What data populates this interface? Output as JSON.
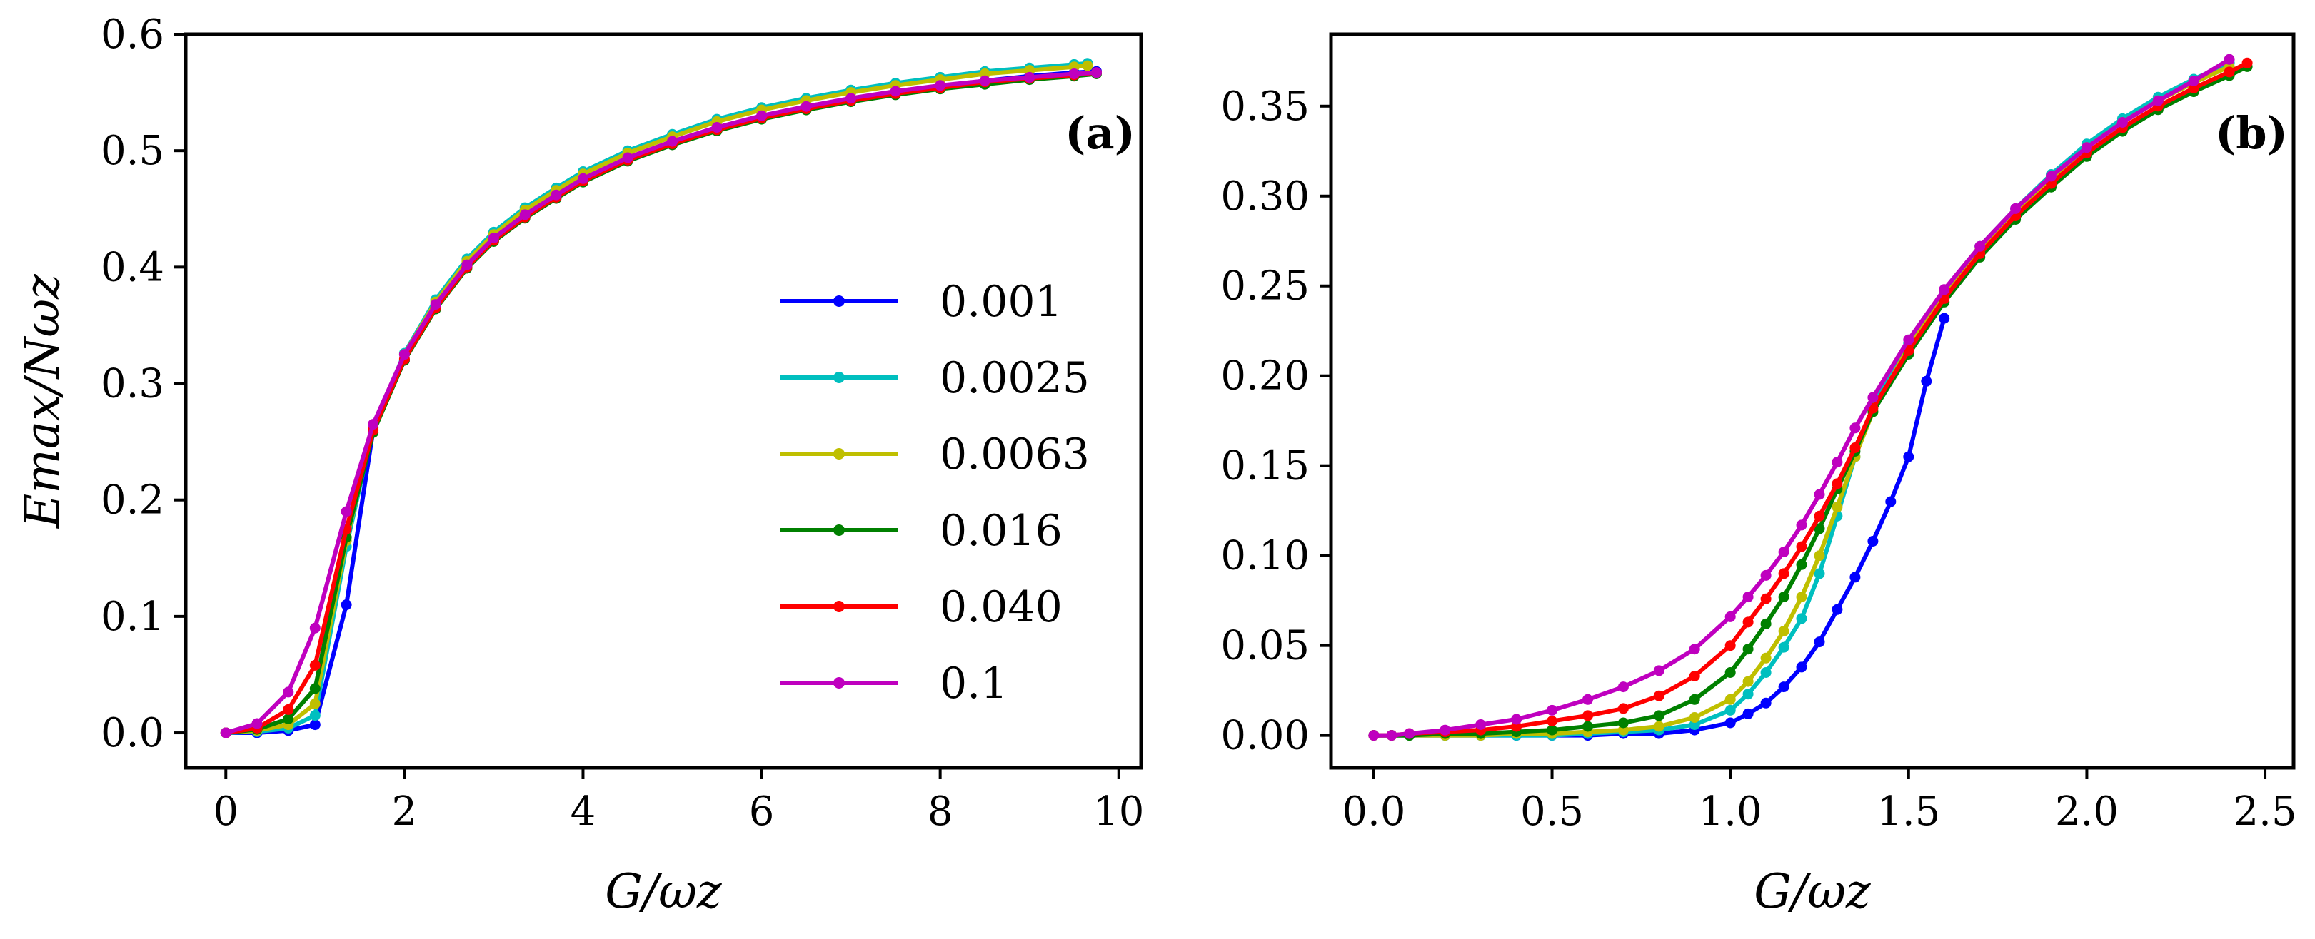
{
  "chart_data": [
    {
      "panel": "(a)",
      "type": "line",
      "xlabel": "G/ωz",
      "ylabel": "Emax/Nωz",
      "xlim": [
        -0.45,
        10.25
      ],
      "ylim": [
        -0.03,
        0.6
      ],
      "xticks": [
        0,
        2,
        4,
        6,
        8,
        10
      ],
      "xtick_labels": [
        "0",
        "2",
        "4",
        "6",
        "8",
        "10"
      ],
      "yticks": [
        0.0,
        0.1,
        0.2,
        0.3,
        0.4,
        0.5,
        0.6
      ],
      "ytick_labels": [
        "0.0",
        "0.1",
        "0.2",
        "0.3",
        "0.4",
        "0.5",
        "0.6"
      ],
      "legend": {
        "placement": "center-right",
        "entries": [
          "0.001",
          "0.0025",
          "0.0063",
          "0.016",
          "0.040",
          "0.1"
        ]
      },
      "series": [
        {
          "name": "0.001",
          "color": "#0000ff",
          "x": [
            0,
            0.35,
            0.7,
            1.0,
            1.35,
            1.65,
            2.0,
            2.35,
            2.7,
            3.0,
            3.35,
            3.7,
            4.0,
            4.5,
            5.0,
            5.5,
            6.0,
            6.5,
            7.0,
            7.5,
            8.0,
            8.5,
            9.0,
            9.5,
            9.75
          ],
          "y": [
            0.0,
            0.0,
            0.002,
            0.007,
            0.11,
            0.26,
            0.32,
            0.365,
            0.4,
            0.423,
            0.443,
            0.46,
            0.474,
            0.492,
            0.507,
            0.519,
            0.529,
            0.537,
            0.544,
            0.55,
            0.555,
            0.56,
            0.564,
            0.567,
            0.568
          ]
        },
        {
          "name": "0.0025",
          "color": "#00bfbf",
          "x": [
            0,
            0.35,
            0.7,
            1.0,
            1.35,
            1.65,
            2.0,
            2.35,
            2.7,
            3.0,
            3.35,
            3.7,
            4.0,
            4.5,
            5.0,
            5.5,
            6.0,
            6.5,
            7.0,
            7.5,
            8.0,
            8.5,
            9.0,
            9.5,
            9.65
          ],
          "y": [
            0.0,
            0.001,
            0.004,
            0.015,
            0.16,
            0.262,
            0.326,
            0.372,
            0.407,
            0.43,
            0.451,
            0.468,
            0.482,
            0.5,
            0.514,
            0.527,
            0.537,
            0.545,
            0.552,
            0.558,
            0.563,
            0.568,
            0.571,
            0.574,
            0.575
          ]
        },
        {
          "name": "0.0063",
          "color": "#bfbf00",
          "x": [
            0,
            0.35,
            0.7,
            1.0,
            1.35,
            1.65,
            2.0,
            2.35,
            2.7,
            3.0,
            3.35,
            3.7,
            4.0,
            4.5,
            5.0,
            5.5,
            6.0,
            6.5,
            7.0,
            7.5,
            8.0,
            8.5,
            9.0,
            9.5,
            9.65
          ],
          "y": [
            0.0,
            0.002,
            0.007,
            0.025,
            0.165,
            0.262,
            0.325,
            0.37,
            0.405,
            0.428,
            0.449,
            0.466,
            0.48,
            0.498,
            0.512,
            0.525,
            0.535,
            0.543,
            0.55,
            0.556,
            0.561,
            0.566,
            0.569,
            0.572,
            0.573
          ]
        },
        {
          "name": "0.016",
          "color": "#008000",
          "x": [
            0,
            0.35,
            0.7,
            1.0,
            1.35,
            1.65,
            2.0,
            2.35,
            2.7,
            3.0,
            3.35,
            3.7,
            4.0,
            4.5,
            5.0,
            5.5,
            6.0,
            6.5,
            7.0,
            7.5,
            8.0,
            8.5,
            9.0,
            9.5,
            9.75
          ],
          "y": [
            0.0,
            0.003,
            0.012,
            0.038,
            0.168,
            0.258,
            0.32,
            0.364,
            0.399,
            0.422,
            0.442,
            0.459,
            0.473,
            0.491,
            0.505,
            0.517,
            0.527,
            0.535,
            0.542,
            0.548,
            0.553,
            0.557,
            0.561,
            0.564,
            0.566
          ]
        },
        {
          "name": "0.040",
          "color": "#ff0000",
          "x": [
            0,
            0.35,
            0.7,
            1.0,
            1.35,
            1.65,
            2.0,
            2.35,
            2.7,
            3.0,
            3.35,
            3.7,
            4.0,
            4.5,
            5.0,
            5.5,
            6.0,
            6.5,
            7.0,
            7.5,
            8.0,
            8.5,
            9.0,
            9.5,
            9.75
          ],
          "y": [
            0.0,
            0.004,
            0.02,
            0.058,
            0.175,
            0.26,
            0.321,
            0.365,
            0.4,
            0.423,
            0.443,
            0.46,
            0.474,
            0.492,
            0.506,
            0.518,
            0.528,
            0.536,
            0.543,
            0.549,
            0.554,
            0.559,
            0.562,
            0.565,
            0.567
          ]
        },
        {
          "name": "0.1",
          "color": "#bf00bf",
          "x": [
            0,
            0.35,
            0.7,
            1.0,
            1.35,
            1.65,
            2.0,
            2.35,
            2.7,
            3.0,
            3.35,
            3.7,
            4.0,
            4.5,
            5.0,
            5.5,
            6.0,
            6.5,
            7.0,
            7.5,
            8.0,
            8.5,
            9.0,
            9.5,
            9.75
          ],
          "y": [
            0.0,
            0.008,
            0.035,
            0.09,
            0.19,
            0.265,
            0.325,
            0.368,
            0.402,
            0.425,
            0.445,
            0.462,
            0.476,
            0.494,
            0.508,
            0.52,
            0.53,
            0.538,
            0.545,
            0.551,
            0.556,
            0.56,
            0.563,
            0.566,
            0.567
          ]
        }
      ]
    },
    {
      "panel": "(b)",
      "type": "line",
      "xlabel": "G/ωz",
      "ylabel": "",
      "xlim": [
        -0.12,
        2.58
      ],
      "ylim": [
        -0.018,
        0.39
      ],
      "xticks": [
        0.0,
        0.5,
        1.0,
        1.5,
        2.0,
        2.5
      ],
      "xtick_labels": [
        "0.0",
        "0.5",
        "1.0",
        "1.5",
        "2.0",
        "2.5"
      ],
      "yticks": [
        0.0,
        0.05,
        0.1,
        0.15,
        0.2,
        0.25,
        0.3,
        0.35
      ],
      "ytick_labels": [
        "0.00",
        "0.05",
        "0.10",
        "0.15",
        "0.20",
        "0.25",
        "0.30",
        "0.35"
      ],
      "series": [
        {
          "name": "0.001",
          "color": "#0000ff",
          "x": [
            0.0,
            0.05,
            0.1,
            0.2,
            0.3,
            0.4,
            0.5,
            0.6,
            0.7,
            0.8,
            0.9,
            1.0,
            1.05,
            1.1,
            1.15,
            1.2,
            1.25,
            1.3,
            1.35,
            1.4,
            1.45,
            1.5,
            1.55,
            1.6
          ],
          "y": [
            0.0,
            0.0,
            0.0,
            0.0,
            0.0,
            0.0,
            0.0,
            0.0,
            0.001,
            0.001,
            0.003,
            0.007,
            0.012,
            0.018,
            0.027,
            0.038,
            0.052,
            0.07,
            0.088,
            0.108,
            0.13,
            0.155,
            0.197,
            0.232
          ]
        },
        {
          "name": "0.0025",
          "color": "#00bfbf",
          "x": [
            0.0,
            0.05,
            0.1,
            0.2,
            0.3,
            0.4,
            0.5,
            0.6,
            0.7,
            0.8,
            0.9,
            1.0,
            1.05,
            1.1,
            1.15,
            1.2,
            1.25,
            1.3,
            1.35,
            1.4,
            1.5,
            1.6,
            1.7,
            1.8,
            1.9,
            2.0,
            2.1,
            2.2,
            2.3,
            2.4
          ],
          "y": [
            0.0,
            0.0,
            0.0,
            0.0,
            0.0,
            0.0,
            0.0,
            0.001,
            0.002,
            0.003,
            0.006,
            0.014,
            0.023,
            0.035,
            0.049,
            0.065,
            0.09,
            0.122,
            0.155,
            0.183,
            0.218,
            0.247,
            0.272,
            0.293,
            0.312,
            0.329,
            0.343,
            0.355,
            0.365,
            0.374
          ]
        },
        {
          "name": "0.0063",
          "color": "#bfbf00",
          "x": [
            0.0,
            0.05,
            0.1,
            0.2,
            0.3,
            0.4,
            0.5,
            0.6,
            0.7,
            0.8,
            0.9,
            1.0,
            1.05,
            1.1,
            1.15,
            1.2,
            1.25,
            1.3,
            1.35,
            1.4,
            1.5,
            1.6,
            1.7,
            1.8,
            1.9,
            2.0,
            2.1,
            2.2,
            2.3,
            2.4
          ],
          "y": [
            0.0,
            0.0,
            0.0,
            0.0,
            0.0,
            0.001,
            0.001,
            0.002,
            0.003,
            0.005,
            0.01,
            0.02,
            0.03,
            0.043,
            0.058,
            0.077,
            0.1,
            0.127,
            0.155,
            0.18,
            0.216,
            0.245,
            0.27,
            0.291,
            0.31,
            0.327,
            0.341,
            0.353,
            0.363,
            0.372
          ]
        },
        {
          "name": "0.016",
          "color": "#008000",
          "x": [
            0.0,
            0.05,
            0.1,
            0.2,
            0.3,
            0.4,
            0.5,
            0.6,
            0.7,
            0.8,
            0.9,
            1.0,
            1.05,
            1.1,
            1.15,
            1.2,
            1.25,
            1.3,
            1.35,
            1.4,
            1.5,
            1.6,
            1.7,
            1.8,
            1.9,
            2.0,
            2.1,
            2.2,
            2.3,
            2.4,
            2.45
          ],
          "y": [
            0.0,
            0.0,
            0.0,
            0.001,
            0.001,
            0.002,
            0.003,
            0.005,
            0.007,
            0.011,
            0.02,
            0.035,
            0.048,
            0.062,
            0.077,
            0.095,
            0.115,
            0.137,
            0.158,
            0.18,
            0.212,
            0.241,
            0.266,
            0.287,
            0.305,
            0.322,
            0.336,
            0.348,
            0.358,
            0.367,
            0.372
          ]
        },
        {
          "name": "0.040",
          "color": "#ff0000",
          "x": [
            0.0,
            0.05,
            0.1,
            0.2,
            0.3,
            0.4,
            0.5,
            0.6,
            0.7,
            0.8,
            0.9,
            1.0,
            1.05,
            1.1,
            1.15,
            1.2,
            1.25,
            1.3,
            1.35,
            1.4,
            1.5,
            1.6,
            1.7,
            1.8,
            1.9,
            2.0,
            2.1,
            2.2,
            2.3,
            2.4,
            2.45
          ],
          "y": [
            0.0,
            0.0,
            0.001,
            0.002,
            0.003,
            0.005,
            0.008,
            0.011,
            0.015,
            0.022,
            0.033,
            0.05,
            0.063,
            0.076,
            0.09,
            0.105,
            0.122,
            0.14,
            0.16,
            0.182,
            0.214,
            0.243,
            0.268,
            0.289,
            0.307,
            0.324,
            0.338,
            0.35,
            0.36,
            0.369,
            0.374
          ]
        },
        {
          "name": "0.1",
          "color": "#bf00bf",
          "x": [
            0.0,
            0.05,
            0.1,
            0.2,
            0.3,
            0.4,
            0.5,
            0.6,
            0.7,
            0.8,
            0.9,
            1.0,
            1.05,
            1.1,
            1.15,
            1.2,
            1.25,
            1.3,
            1.35,
            1.4,
            1.5,
            1.6,
            1.7,
            1.8,
            1.9,
            2.0,
            2.1,
            2.2,
            2.3,
            2.4
          ],
          "y": [
            0.0,
            0.0,
            0.001,
            0.003,
            0.006,
            0.009,
            0.014,
            0.02,
            0.027,
            0.036,
            0.048,
            0.066,
            0.077,
            0.089,
            0.102,
            0.117,
            0.134,
            0.152,
            0.171,
            0.188,
            0.22,
            0.248,
            0.272,
            0.293,
            0.311,
            0.327,
            0.341,
            0.353,
            0.364,
            0.376
          ]
        }
      ]
    }
  ]
}
